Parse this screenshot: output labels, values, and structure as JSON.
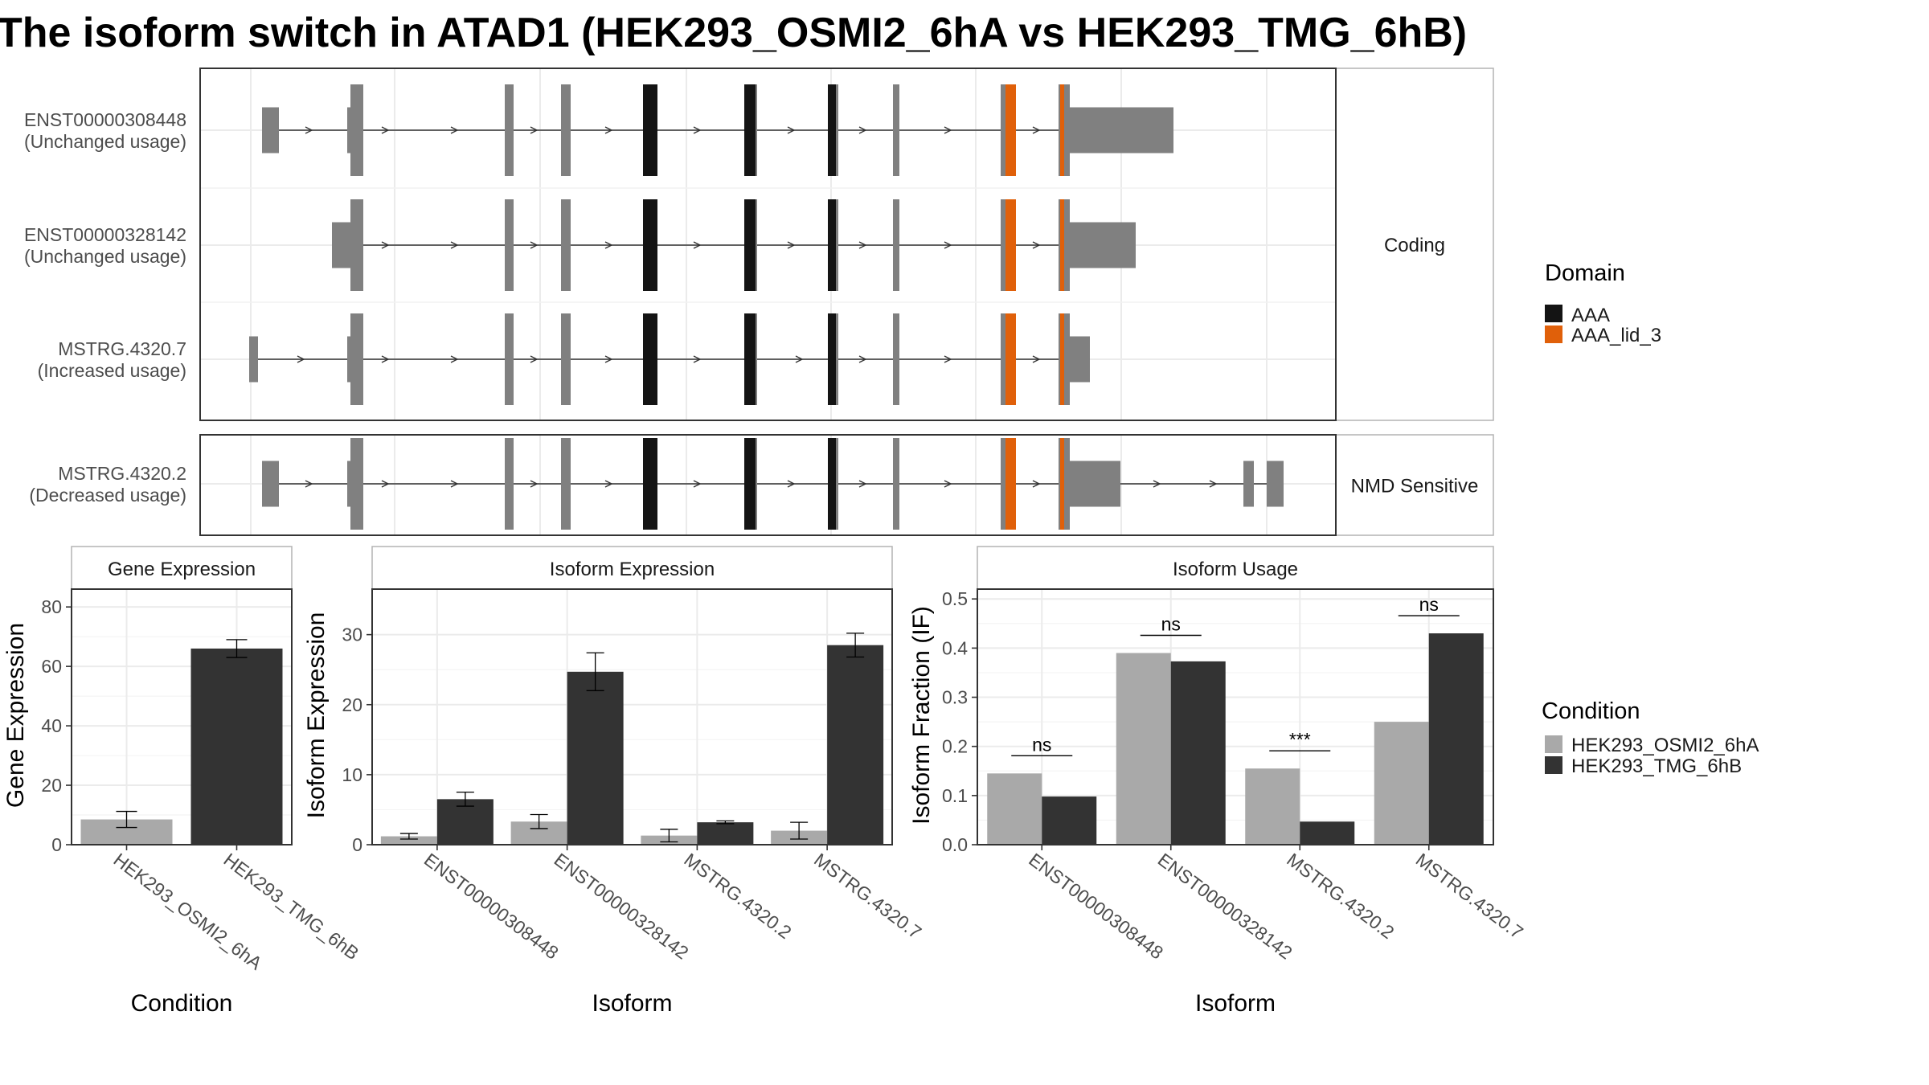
{
  "title": "The isoform switch in ATAD1 (HEK293_OSMI2_6hA vs HEK293_TMG_6hB)",
  "colors": {
    "exon": "#808080",
    "aaa": "#141414",
    "aaa_lid": "#e0600a",
    "cond_a": "#a9a9a9",
    "cond_b": "#333333"
  },
  "structure": {
    "facets": [
      "Coding",
      "NMD Sensitive"
    ],
    "isoforms": [
      {
        "id": "ENST00000308448",
        "usage": "(Unchanged usage)",
        "facet": "Coding"
      },
      {
        "id": "ENST00000328142",
        "usage": "(Unchanged usage)",
        "facet": "Coding"
      },
      {
        "id": "MSTRG.4320.7",
        "usage": "(Increased usage)",
        "facet": "Coding"
      },
      {
        "id": "MSTRG.4320.2",
        "usage": "(Decreased usage)",
        "facet": "NMD Sensitive"
      }
    ]
  },
  "legends": {
    "domain": {
      "title": "Domain",
      "items": [
        "AAA",
        "AAA_lid_3"
      ]
    },
    "condition": {
      "title": "Condition",
      "items": [
        "HEK293_OSMI2_6hA",
        "HEK293_TMG_6hB"
      ]
    }
  },
  "chart_data": [
    {
      "type": "bar",
      "strip": "Gene Expression",
      "xlabel": "Condition",
      "ylabel": "Gene Expression",
      "ylim": [
        0,
        86
      ],
      "yticks": [
        0,
        20,
        40,
        60,
        80
      ],
      "categories": [
        "HEK293_OSMI2_6hA",
        "HEK293_TMG_6hB"
      ],
      "values": [
        8.5,
        66
      ],
      "errors": [
        2.7,
        3.0
      ]
    },
    {
      "type": "bar",
      "strip": "Isoform Expression",
      "xlabel": "Isoform",
      "ylabel": "Isoform Expression",
      "ylim": [
        0,
        36.5
      ],
      "yticks": [
        0,
        10,
        20,
        30
      ],
      "categories": [
        "ENST00000308448",
        "ENST00000328142",
        "MSTRG.4320.2",
        "MSTRG.4320.7"
      ],
      "series": [
        {
          "name": "HEK293_OSMI2_6hA",
          "values": [
            1.2,
            3.3,
            1.3,
            2.0
          ],
          "errors": [
            0.4,
            1.0,
            0.9,
            1.2
          ]
        },
        {
          "name": "HEK293_TMG_6hB",
          "values": [
            6.5,
            24.7,
            3.2,
            28.5
          ],
          "errors": [
            1.0,
            2.7,
            0.2,
            1.7
          ]
        }
      ]
    },
    {
      "type": "bar",
      "strip": "Isoform Usage",
      "xlabel": "Isoform",
      "ylabel": "Isoform Fraction (IF)",
      "ylim": [
        0,
        0.52
      ],
      "yticks": [
        0.0,
        0.1,
        0.2,
        0.3,
        0.4,
        0.5
      ],
      "ytick_labels": [
        "0.0",
        "0.1",
        "0.2",
        "0.3",
        "0.4",
        "0.5"
      ],
      "categories": [
        "ENST00000308448",
        "ENST00000328142",
        "MSTRG.4320.2",
        "MSTRG.4320.7"
      ],
      "series": [
        {
          "name": "HEK293_OSMI2_6hA",
          "values": [
            0.145,
            0.39,
            0.155,
            0.25
          ]
        },
        {
          "name": "HEK293_TMG_6hB",
          "values": [
            0.098,
            0.373,
            0.047,
            0.43
          ]
        }
      ],
      "significance": [
        "ns",
        "ns",
        "***",
        "ns"
      ]
    }
  ]
}
